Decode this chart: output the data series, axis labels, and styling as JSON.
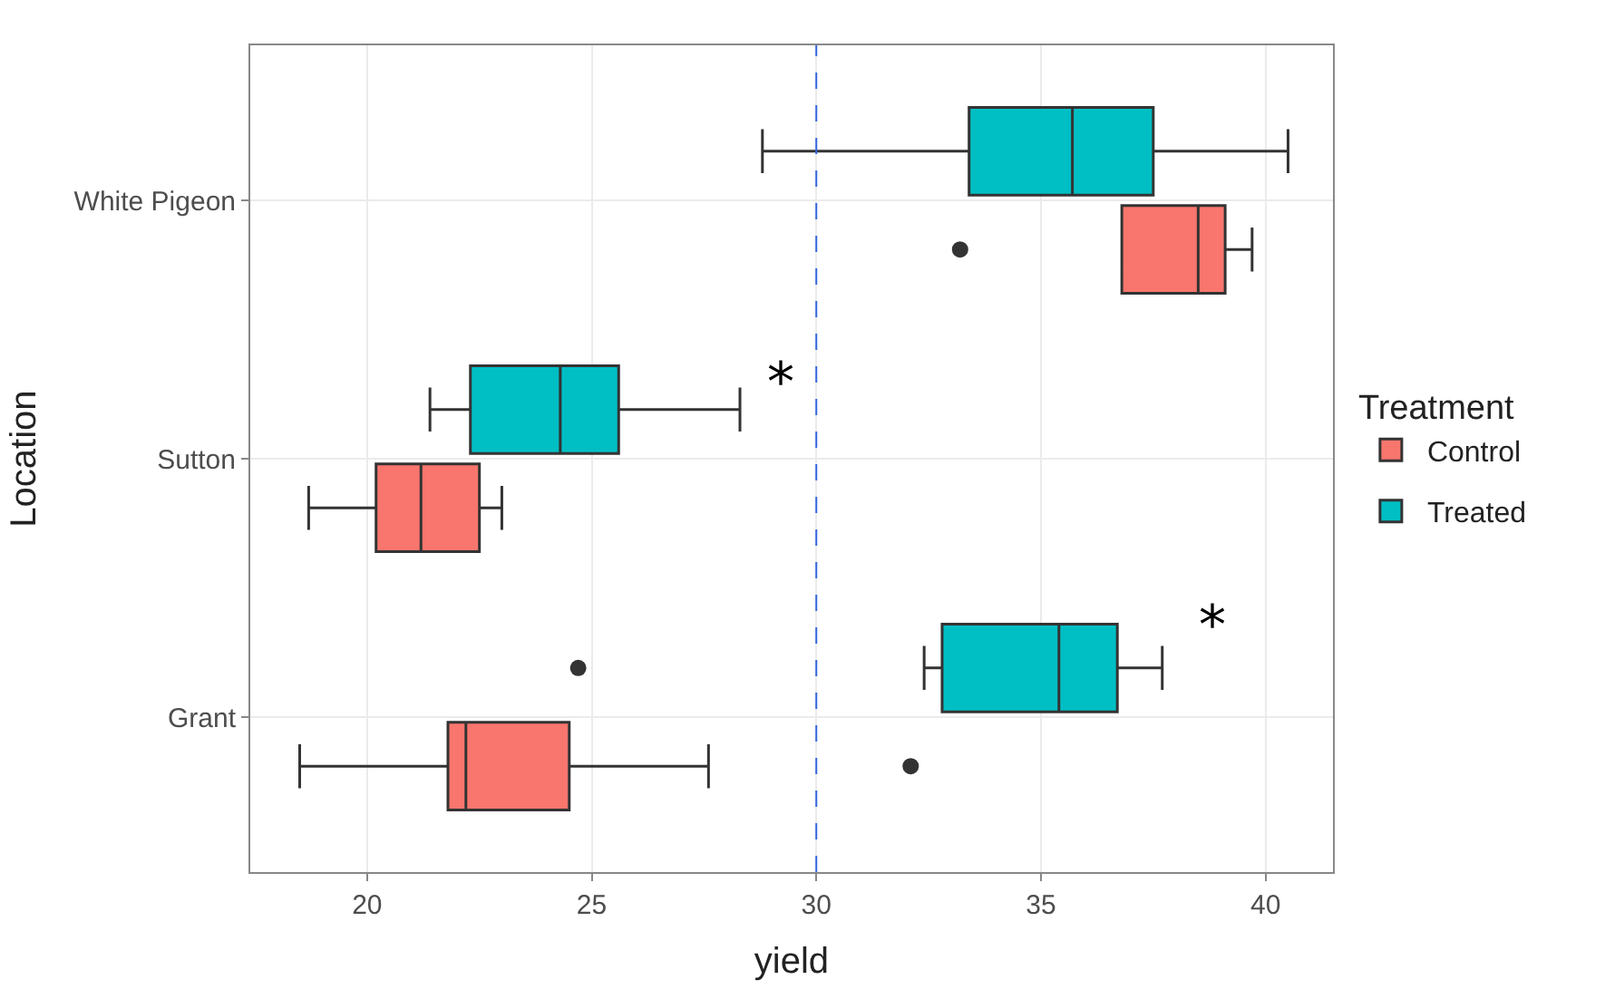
{
  "chart_data": {
    "type": "box",
    "orientation": "horizontal",
    "xlabel": "yield",
    "ylabel": "Location",
    "legend_title": "Treatment",
    "categories": [
      "White Pigeon",
      "Sutton",
      "Grant"
    ],
    "series": [
      {
        "name": "Control",
        "color": "#f8766d",
        "boxes": [
          {
            "low": 36.8,
            "q1": 36.8,
            "median": 38.5,
            "q3": 39.1,
            "high": 39.7,
            "outliers": [
              33.2
            ]
          },
          {
            "low": 18.7,
            "q1": 20.2,
            "median": 21.2,
            "q3": 22.5,
            "high": 23.0
          },
          {
            "low": 18.5,
            "q1": 21.8,
            "median": 22.2,
            "q3": 24.5,
            "high": 27.6,
            "outliers": [
              32.1
            ]
          }
        ]
      },
      {
        "name": "Treated",
        "color": "#00bfc4",
        "boxes": [
          {
            "low": 28.8,
            "q1": 33.4,
            "median": 35.7,
            "q3": 37.5,
            "high": 40.5
          },
          {
            "low": 21.4,
            "q1": 22.3,
            "median": 24.3,
            "q3": 25.6,
            "high": 28.3
          },
          {
            "low": 32.4,
            "q1": 32.8,
            "median": 35.4,
            "q3": 36.7,
            "high": 37.7,
            "outliers": [
              24.7
            ]
          }
        ]
      }
    ],
    "xlim": [
      17.4,
      41.5
    ],
    "xticks": [
      20,
      25,
      30,
      35,
      40
    ],
    "ref_lines": [
      {
        "axis": "x",
        "value": 30,
        "color": "#3366dd",
        "line_style": "dashed"
      }
    ],
    "annotations": [
      "*",
      "*"
    ],
    "grid": true,
    "legend": "right"
  }
}
